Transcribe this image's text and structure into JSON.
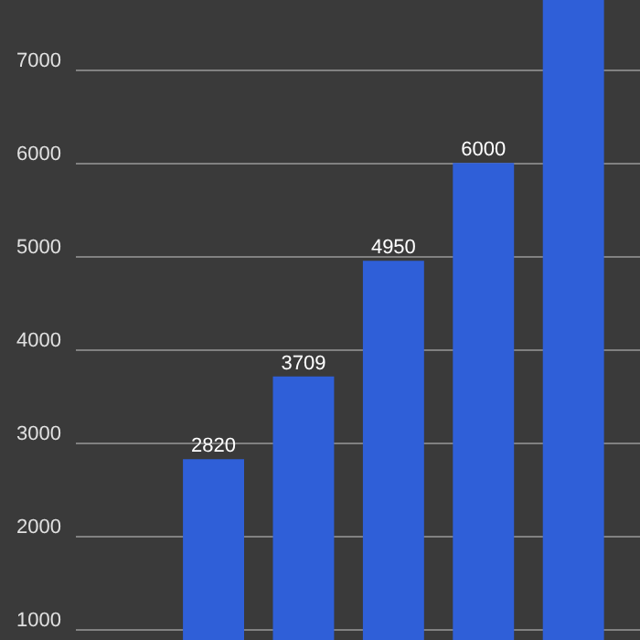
{
  "chart_data": {
    "type": "bar",
    "categories": [
      null,
      null,
      null,
      null,
      null
    ],
    "values": [
      2820,
      3709,
      4950,
      6000,
      7750
    ],
    "value_labels": [
      "2820",
      "3709",
      "4950",
      "6000",
      null
    ],
    "color": "#2f5fd8",
    "ylim": [
      880,
      7750
    ],
    "yticks": [
      1000,
      2000,
      3000,
      4000,
      5000,
      6000,
      7000
    ],
    "grid": "y",
    "tick_labels": "y"
  }
}
